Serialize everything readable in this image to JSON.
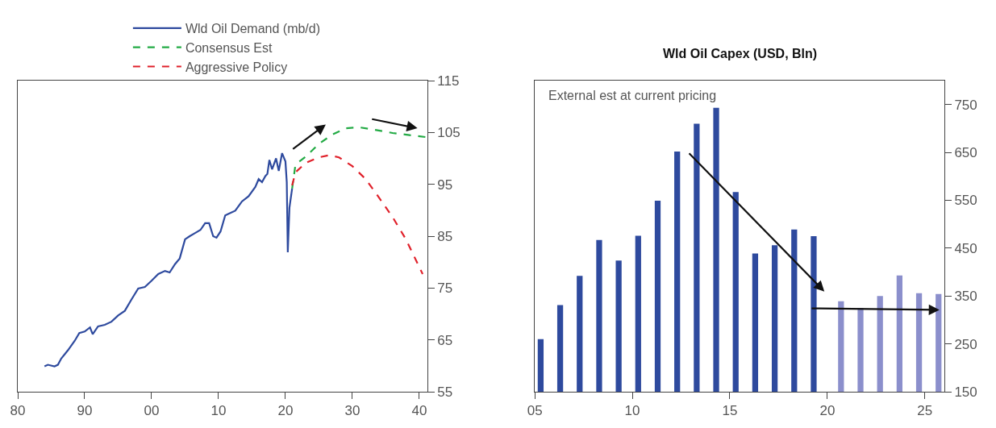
{
  "chart_data": [
    {
      "type": "line",
      "legend": "top",
      "xlim": [
        1980,
        2041.2
      ],
      "xticks": [
        {
          "value": 1980,
          "label": "80"
        },
        {
          "value": 1990,
          "label": "90"
        },
        {
          "value": 2000,
          "label": "00"
        },
        {
          "value": 2010,
          "label": "10"
        },
        {
          "value": 2020,
          "label": "20"
        },
        {
          "value": 2030,
          "label": "30"
        },
        {
          "value": 2040,
          "label": "40"
        }
      ],
      "ylim": [
        55,
        115
      ],
      "yticks": [
        55,
        65,
        75,
        85,
        95,
        105,
        115
      ],
      "series": [
        {
          "name": "Wld Oil Demand (mb/d)",
          "color": "#2e4a9e",
          "line_style": "solid",
          "x": [
            1984.0,
            1984.5,
            1985.5,
            1986,
            1986.5,
            1987.5,
            1988.5,
            1989.2,
            1990,
            1990.8,
            1991.2,
            1992,
            1993,
            1994,
            1995,
            1996,
            1997,
            1998,
            1999,
            2000,
            2001,
            2002,
            2002.7,
            2003.5,
            2004.2,
            2005,
            2005.7,
            2006.5,
            2007.3,
            2008,
            2008.6,
            2009.2,
            2009.7,
            2010.3,
            2011,
            2011.5,
            2012.5,
            2013.5,
            2014.5,
            2015.5,
            2016,
            2016.5,
            2017,
            2017.3,
            2017.6,
            2018,
            2018.6,
            2019,
            2019.5,
            2020,
            2020.2,
            2020.35,
            2020.6,
            2021
          ],
          "values": [
            59.9,
            60.2,
            59.9,
            60.2,
            61.4,
            63,
            64.8,
            66.3,
            66.6,
            67.4,
            66.1,
            67.6,
            67.9,
            68.5,
            69.7,
            70.6,
            72.8,
            74.9,
            75.2,
            76.4,
            77.7,
            78.3,
            78,
            79.6,
            80.7,
            84.4,
            85,
            85.6,
            86.2,
            87.5,
            87.5,
            85,
            84.7,
            85.9,
            89,
            89.3,
            89.9,
            91.7,
            92.7,
            94.5,
            96,
            95.4,
            96.6,
            97,
            99.7,
            97.9,
            100,
            97.6,
            101,
            99.4,
            95.4,
            81.9,
            90.5,
            94.2
          ]
        },
        {
          "name": "Consensus Est",
          "color": "#22aa44",
          "line_style": "dashed",
          "x": [
            2021,
            2021.5,
            2023,
            2025,
            2027,
            2029,
            2031,
            2033,
            2036,
            2041
          ],
          "values": [
            94.2,
            98.8,
            100.3,
            102.8,
            104.6,
            105.8,
            106,
            105.6,
            104.9,
            104.1
          ]
        },
        {
          "name": "Aggressive Policy",
          "color": "#e0202a",
          "line_style": "dashed",
          "x": [
            2021,
            2021.5,
            2023,
            2025,
            2026.5,
            2028,
            2030,
            2032,
            2034,
            2036,
            2038,
            2040.5
          ],
          "values": [
            94.8,
            97.3,
            99.1,
            100.2,
            100.6,
            100.2,
            98.5,
            96,
            92.4,
            88.7,
            84.4,
            77.7
          ]
        }
      ]
    },
    {
      "type": "bar",
      "title": "Wld Oil Capex (USD, Bln)",
      "annotations": [
        "External est at current pricing"
      ],
      "xlim": [
        2005,
        2026
      ],
      "xticks": [
        {
          "value": 2005,
          "label": "05"
        },
        {
          "value": 2010,
          "label": "10"
        },
        {
          "value": 2015,
          "label": "15"
        },
        {
          "value": 2020,
          "label": "20"
        },
        {
          "value": 2025,
          "label": "25"
        }
      ],
      "ylim": [
        150,
        800
      ],
      "yticks": [
        150,
        250,
        350,
        450,
        550,
        650,
        750
      ],
      "series": [
        {
          "color": "#2e4a9e",
          "x": [
            2005.3,
            2006.3,
            2007.3,
            2008.3,
            2009.3,
            2010.3,
            2011.3,
            2012.3,
            2013.3,
            2014.3,
            2015.3,
            2016.3,
            2017.3,
            2018.3,
            2019.3
          ],
          "values": [
            260,
            331,
            392,
            467,
            424,
            476,
            549,
            652,
            710,
            743,
            567,
            439,
            456,
            489,
            475
          ]
        },
        {
          "color": "#8b8fcc",
          "x": [
            2020.7,
            2021.7,
            2022.7,
            2023.7,
            2024.7,
            2025.7
          ],
          "values": [
            339,
            325,
            350,
            393,
            356,
            354
          ]
        }
      ]
    }
  ]
}
